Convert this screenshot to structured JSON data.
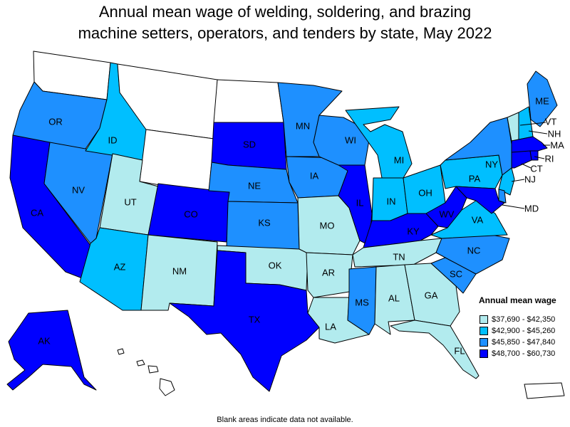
{
  "title_line1": "Annual mean wage of welding, soldering, and brazing",
  "title_line2": "machine setters, operators, and tenders by state, May 2022",
  "footnote": "Blank areas indicate data not available.",
  "legend": {
    "title": "Annual mean wage",
    "items": [
      {
        "label": "$37,690 - $42,350",
        "color": "#b2ebee"
      },
      {
        "label": "$42,900 - $45,260",
        "color": "#00bfff"
      },
      {
        "label": "$45,850 - $47,840",
        "color": "#1e90ff"
      },
      {
        "label": "$48,700 - $60,730",
        "color": "#0000ff"
      }
    ]
  },
  "nodata_color": "#ffffff",
  "states": [
    {
      "abbr": "WA",
      "tier": 0,
      "label": ""
    },
    {
      "abbr": "OR",
      "tier": 3,
      "label": "OR"
    },
    {
      "abbr": "CA",
      "tier": 4,
      "label": "CA"
    },
    {
      "abbr": "NV",
      "tier": 3,
      "label": "NV"
    },
    {
      "abbr": "ID",
      "tier": 2,
      "label": "ID"
    },
    {
      "abbr": "MT",
      "tier": 0,
      "label": ""
    },
    {
      "abbr": "WY",
      "tier": 0,
      "label": ""
    },
    {
      "abbr": "UT",
      "tier": 1,
      "label": "UT"
    },
    {
      "abbr": "AZ",
      "tier": 2,
      "label": "AZ"
    },
    {
      "abbr": "CO",
      "tier": 4,
      "label": "CO"
    },
    {
      "abbr": "NM",
      "tier": 1,
      "label": "NM"
    },
    {
      "abbr": "ND",
      "tier": 0,
      "label": ""
    },
    {
      "abbr": "SD",
      "tier": 4,
      "label": "SD"
    },
    {
      "abbr": "NE",
      "tier": 3,
      "label": "NE"
    },
    {
      "abbr": "KS",
      "tier": 3,
      "label": "KS"
    },
    {
      "abbr": "OK",
      "tier": 1,
      "label": "OK"
    },
    {
      "abbr": "TX",
      "tier": 4,
      "label": "TX"
    },
    {
      "abbr": "MN",
      "tier": 3,
      "label": "MN"
    },
    {
      "abbr": "IA",
      "tier": 3,
      "label": "IA"
    },
    {
      "abbr": "MO",
      "tier": 1,
      "label": "MO"
    },
    {
      "abbr": "AR",
      "tier": 1,
      "label": "AR"
    },
    {
      "abbr": "LA",
      "tier": 1,
      "label": "LA"
    },
    {
      "abbr": "WI",
      "tier": 3,
      "label": "WI"
    },
    {
      "abbr": "IL",
      "tier": 4,
      "label": "IL"
    },
    {
      "abbr": "MI",
      "tier": 2,
      "label": "MI"
    },
    {
      "abbr": "IN",
      "tier": 2,
      "label": "IN"
    },
    {
      "abbr": "OH",
      "tier": 2,
      "label": "OH"
    },
    {
      "abbr": "KY",
      "tier": 4,
      "label": "KY"
    },
    {
      "abbr": "TN",
      "tier": 1,
      "label": "TN"
    },
    {
      "abbr": "MS",
      "tier": 3,
      "label": "MS"
    },
    {
      "abbr": "AL",
      "tier": 1,
      "label": "AL"
    },
    {
      "abbr": "GA",
      "tier": 1,
      "label": "GA"
    },
    {
      "abbr": "FL",
      "tier": 1,
      "label": "FL"
    },
    {
      "abbr": "SC",
      "tier": 3,
      "label": "SC"
    },
    {
      "abbr": "NC",
      "tier": 3,
      "label": "NC"
    },
    {
      "abbr": "VA",
      "tier": 2,
      "label": "VA"
    },
    {
      "abbr": "WV",
      "tier": 4,
      "label": "WV"
    },
    {
      "abbr": "PA",
      "tier": 2,
      "label": "PA"
    },
    {
      "abbr": "NY",
      "tier": 3,
      "label": "NY"
    },
    {
      "abbr": "ME",
      "tier": 3,
      "label": "ME"
    },
    {
      "abbr": "VT",
      "tier": 1,
      "label": "VT"
    },
    {
      "abbr": "NH",
      "tier": 2,
      "label": "NH"
    },
    {
      "abbr": "MA",
      "tier": 4,
      "label": "MA"
    },
    {
      "abbr": "RI",
      "tier": 4,
      "label": "RI"
    },
    {
      "abbr": "CT",
      "tier": 4,
      "label": "CT"
    },
    {
      "abbr": "NJ",
      "tier": 2,
      "label": "NJ"
    },
    {
      "abbr": "DE",
      "tier": 3,
      "label": ""
    },
    {
      "abbr": "MD",
      "tier": 4,
      "label": "MD"
    },
    {
      "abbr": "AK",
      "tier": 4,
      "label": "AK"
    },
    {
      "abbr": "HI",
      "tier": 0,
      "label": ""
    },
    {
      "abbr": "PR",
      "tier": 0,
      "label": ""
    }
  ]
}
